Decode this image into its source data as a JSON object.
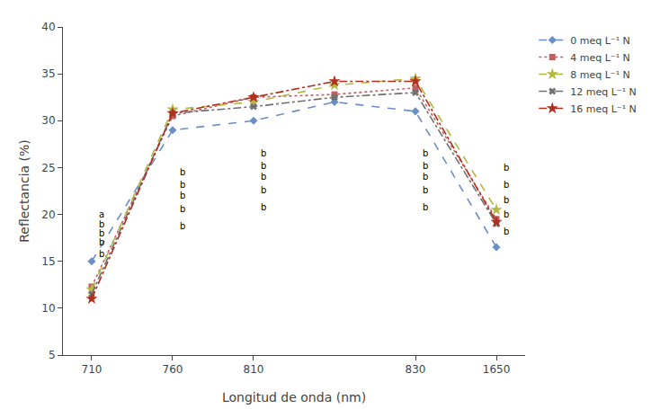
{
  "chart_data": {
    "type": "line",
    "categories": [
      "710",
      "760",
      "810",
      null,
      "830",
      "1650"
    ],
    "series": [
      {
        "name": "0 meq L⁻¹ N",
        "color": "#6a8fc7",
        "marker": "diamond",
        "line_style": "dash",
        "values": [
          15.0,
          29.0,
          30.0,
          32.0,
          31.0,
          16.5
        ]
      },
      {
        "name": "4 meq L⁻¹ N",
        "color": "#c06060",
        "marker": "square",
        "line_style": "dot",
        "values": [
          12.3,
          30.5,
          32.5,
          32.8,
          33.5,
          19.5
        ]
      },
      {
        "name": "8 meq L⁻¹ N",
        "color": "#b5b840",
        "marker": "star",
        "line_style": "dash",
        "values": [
          12.0,
          31.2,
          32.0,
          33.8,
          34.5,
          20.5
        ]
      },
      {
        "name": "12 meq L⁻¹ N",
        "color": "#707070",
        "marker": "x",
        "line_style": "dashdot",
        "values": [
          11.5,
          30.8,
          31.5,
          32.5,
          33.0,
          19.0
        ]
      },
      {
        "name": "16 meq L⁻¹ N",
        "color": "#b03020",
        "marker": "star",
        "line_style": "dashdot",
        "values": [
          11.0,
          30.8,
          32.5,
          34.2,
          34.2,
          19.2
        ]
      }
    ],
    "xlabel": "Longitud de onda (nm)",
    "ylabel": "Reflectancia (%)",
    "ylim": [
      5,
      40
    ],
    "yticks": [
      5,
      10,
      15,
      20,
      25,
      30,
      35,
      40
    ],
    "grid": false,
    "legend": "upper right",
    "annotations": [
      {
        "x": 0,
        "y": 20.0,
        "text": "a"
      },
      {
        "x": 0,
        "y": 19.0,
        "text": "b"
      },
      {
        "x": 0,
        "y": 18.0,
        "text": "b"
      },
      {
        "x": 0,
        "y": 17.0,
        "text": "b"
      },
      {
        "x": 0,
        "y": 15.8,
        "text": "b"
      },
      {
        "x": 1,
        "y": 24.5,
        "text": "b"
      },
      {
        "x": 1,
        "y": 23.2,
        "text": "b"
      },
      {
        "x": 1,
        "y": 22.0,
        "text": "b"
      },
      {
        "x": 1,
        "y": 20.6,
        "text": "b"
      },
      {
        "x": 1,
        "y": 18.8,
        "text": "b"
      },
      {
        "x": 2,
        "y": 26.5,
        "text": "b"
      },
      {
        "x": 2,
        "y": 25.2,
        "text": "b"
      },
      {
        "x": 2,
        "y": 24.0,
        "text": "b"
      },
      {
        "x": 2,
        "y": 22.6,
        "text": "b"
      },
      {
        "x": 2,
        "y": 20.8,
        "text": "b"
      },
      {
        "x": 4,
        "y": 26.5,
        "text": "b"
      },
      {
        "x": 4,
        "y": 25.2,
        "text": "b"
      },
      {
        "x": 4,
        "y": 24.0,
        "text": "b"
      },
      {
        "x": 4,
        "y": 22.6,
        "text": "b"
      },
      {
        "x": 4,
        "y": 20.8,
        "text": "b"
      },
      {
        "x": 5,
        "y": 25.0,
        "text": "b"
      },
      {
        "x": 5,
        "y": 23.2,
        "text": "b"
      },
      {
        "x": 5,
        "y": 21.5,
        "text": "b"
      },
      {
        "x": 5,
        "y": 20.0,
        "text": "b"
      },
      {
        "x": 5,
        "y": 18.2,
        "text": "b"
      }
    ]
  }
}
